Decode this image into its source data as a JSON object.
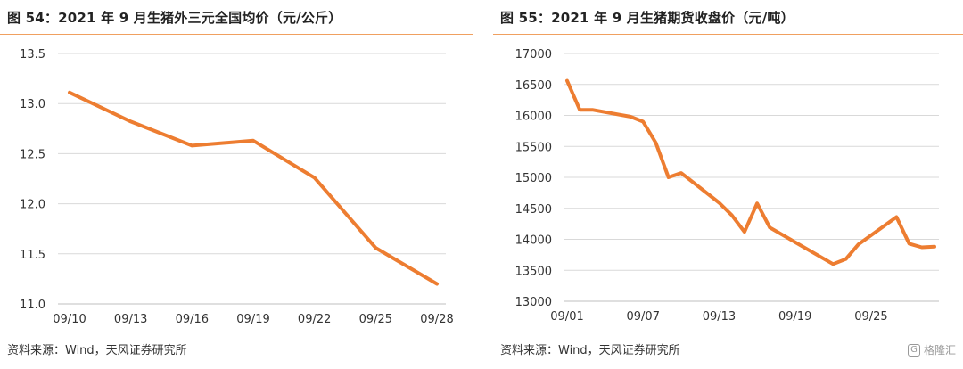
{
  "colors": {
    "line": "#ED7D31",
    "grid": "#D9D9D9",
    "axis": "#BFBFBF",
    "rule": "#F0A060"
  },
  "left": {
    "title": "图 54：2021 年 9 月生猪外三元全国均价（元/公斤）",
    "source": "资料来源：Wind，天风证券研究所"
  },
  "right": {
    "title": "图 55：2021 年 9 月生猪期货收盘价（元/吨）",
    "source": "资料来源：Wind，天风证券研究所"
  },
  "watermark": {
    "icon": "gelonghui-logo-icon",
    "text": "格隆汇"
  },
  "chart_data": [
    {
      "type": "line",
      "title": "图 54：2021 年 9 月生猪外三元全国均价（元/公斤）",
      "xlabel": "",
      "ylabel": "",
      "ylim": [
        11.0,
        13.5
      ],
      "yticks": [
        "11.0",
        "11.5",
        "12.0",
        "12.5",
        "13.0",
        "13.5"
      ],
      "xticks": [
        "09/10",
        "09/13",
        "09/16",
        "09/19",
        "09/22",
        "09/25",
        "09/28"
      ],
      "grid": true,
      "series": [
        {
          "x": [
            "09/10",
            "09/13",
            "09/16",
            "09/19",
            "09/22",
            "09/25",
            "09/28"
          ],
          "values": [
            13.11,
            12.82,
            12.58,
            12.63,
            12.26,
            11.56,
            11.2
          ]
        }
      ]
    },
    {
      "type": "line",
      "title": "图 55：2021 年 9 月生猪期货收盘价（元/吨）",
      "xlabel": "",
      "ylabel": "",
      "ylim": [
        13000,
        17000
      ],
      "yticks": [
        "13000",
        "13500",
        "14000",
        "14500",
        "15000",
        "15500",
        "16000",
        "16500",
        "17000"
      ],
      "xticks": [
        "09/01",
        "09/07",
        "09/13",
        "09/19",
        "09/25"
      ],
      "grid": true,
      "series": [
        {
          "x": [
            "09/01",
            "09/02",
            "09/03",
            "09/06",
            "09/07",
            "09/08",
            "09/09",
            "09/10",
            "09/13",
            "09/14",
            "09/15",
            "09/16",
            "09/17",
            "09/22",
            "09/23",
            "09/24",
            "09/27",
            "09/28",
            "09/29",
            "09/30"
          ],
          "values": [
            16560,
            16090,
            16090,
            15980,
            15900,
            15560,
            15000,
            15070,
            14590,
            14390,
            14120,
            14580,
            14190,
            13600,
            13680,
            13920,
            14360,
            13930,
            13870,
            13880
          ]
        }
      ]
    }
  ]
}
